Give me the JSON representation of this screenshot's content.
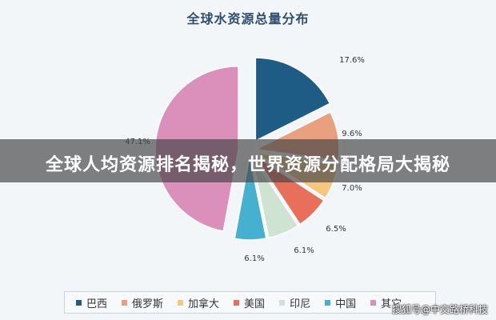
{
  "chart_data": {
    "type": "pie",
    "title": "全球水资源总量分布",
    "categories": [
      "巴西",
      "俄罗斯",
      "加拿大",
      "美国",
      "印尼",
      "中国",
      "其它"
    ],
    "values": [
      17.6,
      9.6,
      7.0,
      6.5,
      6.1,
      6.1,
      47.1
    ],
    "labels": [
      "17.6%",
      "9.6%",
      "7.0%",
      "6.5%",
      "6.1%",
      "6.1%",
      "47.1%"
    ],
    "colors": [
      "#1f5c85",
      "#e8a07f",
      "#f6c77f",
      "#e8705a",
      "#cfe3d3",
      "#45b0cf",
      "#db8fbb"
    ],
    "legend_position": "bottom"
  },
  "banner": {
    "text": "全球人均资源排名揭秘，世界资源分配格局大揭秘"
  },
  "watermark": {
    "text": "搜狐号@中交路桥科技"
  }
}
